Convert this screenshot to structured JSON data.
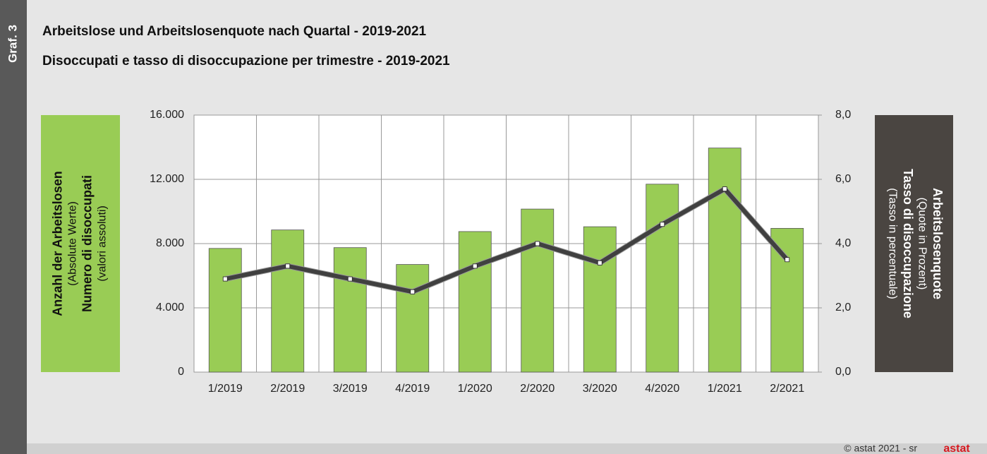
{
  "chart_data": {
    "type": "bar_line",
    "label": "Graf. 3",
    "title": "Arbeitslose und Arbeitslosenquote nach Quartal - 2019-2021",
    "subtitle": "Disoccupati e tasso di disoccupazione per trimestre - 2019-2021",
    "categories": [
      "1/2019",
      "2/2019",
      "3/2019",
      "4/2019",
      "1/2020",
      "2/2020",
      "3/2020",
      "4/2020",
      "1/2021",
      "2/2021"
    ],
    "series": [
      {
        "type": "bar",
        "axis": "y",
        "color": "#99cc55",
        "values": [
          7700,
          8850,
          7750,
          6700,
          8750,
          10150,
          9050,
          11700,
          13950,
          8950
        ]
      },
      {
        "type": "line",
        "axis": "y2",
        "color": "#404040",
        "values": [
          2.9,
          3.3,
          2.9,
          2.5,
          3.3,
          4.0,
          3.4,
          4.6,
          5.7,
          3.5
        ]
      }
    ],
    "ylim": [
      0,
      16000
    ],
    "yticks": [
      0,
      {
        "value": 4000,
        "label": "4.000"
      },
      {
        "value": 8000,
        "label": "8.000"
      },
      {
        "value": 12000,
        "label": "12.000"
      },
      {
        "value": 16000,
        "label": "16.000"
      }
    ],
    "y2lim": [
      0,
      8
    ],
    "y2ticks": [
      {
        "value": 0,
        "label": "0,0"
      },
      {
        "value": 2,
        "label": "2,0"
      },
      {
        "value": 4,
        "label": "4,0"
      },
      {
        "value": 6,
        "label": "6,0"
      },
      {
        "value": 8,
        "label": "8,0"
      }
    ],
    "ylabel": [
      "Anzahl der Arbeitslosen",
      "(Absolute Werte)",
      "Numero di disoccupati",
      "(valori assoluti)"
    ],
    "y2label": [
      "Arbeitslosenquote",
      "(Quote in Prozent)",
      "Tasso di disoccupazione",
      "(Tasso in percentuale)"
    ],
    "grid": true,
    "footer": "© astat 2021 - sr",
    "logo": "astat"
  }
}
